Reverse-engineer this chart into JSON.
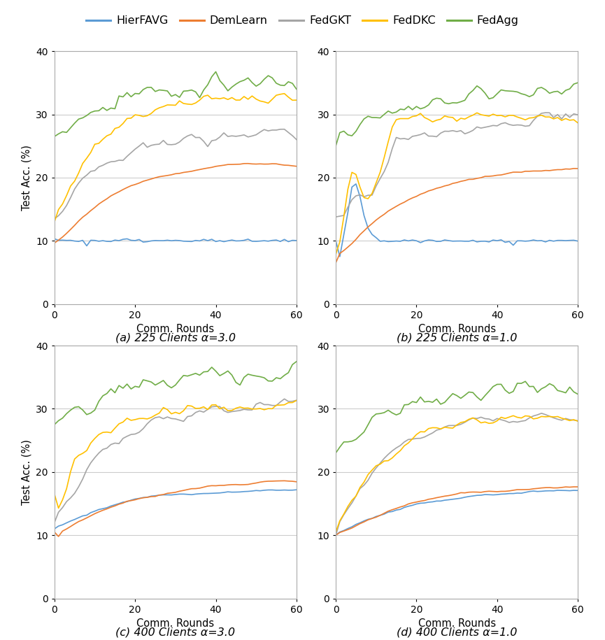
{
  "colors": {
    "HierFAVG": "#5B9BD5",
    "DemLearn": "#ED7D31",
    "FedGKT": "#A5A5A5",
    "FedDKC": "#FFC000",
    "FedAgg": "#70AD47"
  },
  "legend_labels": [
    "HierFAVG",
    "DemLearn",
    "FedGKT",
    "FedDKC",
    "FedAgg"
  ],
  "subtitles": [
    "(a) 225 Clients α=3.0",
    "(b) 225 Clients α=1.0",
    "(c) 400 Clients α=3.0",
    "(d) 400 Clients α=1.0"
  ],
  "xlabel": "Comm. Rounds",
  "ylabel": "Test Acc. (%)",
  "ylim": [
    0,
    40
  ],
  "xlim": [
    0,
    60
  ],
  "yticks": [
    0,
    10,
    20,
    30,
    40
  ],
  "xticks": [
    0,
    20,
    40,
    60
  ],
  "background_color": "#ffffff",
  "grid_color": "#cccccc"
}
